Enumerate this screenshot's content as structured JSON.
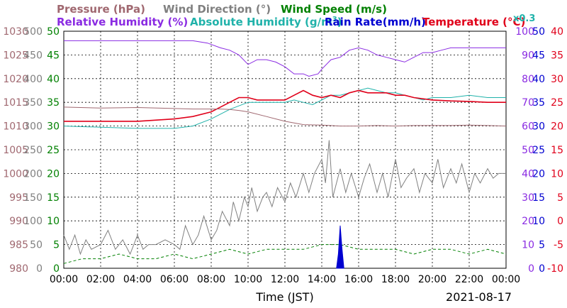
{
  "chart_data": {
    "type": "line",
    "legend": {
      "row1": [
        {
          "text": "Pressure (hPa)",
          "color": "#a06870"
        },
        {
          "text": "Wind Direction (°)",
          "color": "#808080"
        },
        {
          "text": "Wind Speed (m/s)",
          "color": "#008000"
        }
      ],
      "row2": [
        {
          "text": "Relative Humidity (%)",
          "color": "#8a2be2"
        },
        {
          "text": "Absolute Humidity (g/m",
          "sup": "3",
          "tail": ")",
          "color": "#20b2aa"
        },
        {
          "text": "Rain Rate(mm/h)",
          "color": "#0000d0"
        },
        {
          "text": "Temperature (°C)",
          "color": "#e0001a"
        }
      ],
      "scale_note": "x0.3"
    },
    "xlabel": "Time (JST)",
    "date": "2021-08-17",
    "x_ticks": [
      "00:00",
      "02:00",
      "04:00",
      "06:00",
      "08:00",
      "10:00",
      "12:00",
      "14:00",
      "16:00",
      "18:00",
      "20:00",
      "22:00",
      "00:00"
    ],
    "x_range_hours": [
      0,
      24
    ],
    "axes": {
      "pressure": {
        "ticks": [
          "1030",
          "1025",
          "1020",
          "1015",
          "1010",
          "1005",
          "1000",
          "995",
          "990",
          "985",
          "980"
        ],
        "range": [
          980,
          1030
        ],
        "color": "#a06870"
      },
      "wind_direction": {
        "ticks": [
          "500",
          "450",
          "400",
          "350",
          "300",
          "250",
          "200",
          "150",
          "100",
          "50",
          "0"
        ],
        "range": [
          0,
          500
        ],
        "color": "#808080"
      },
      "wind_speed": {
        "ticks": [
          "50",
          "45",
          "40",
          "35",
          "30",
          "25",
          "20",
          "15",
          "10",
          "5",
          "0"
        ],
        "range": [
          0,
          50
        ],
        "color": "#008000"
      },
      "humidity": {
        "ticks": [
          "100",
          "90",
          "80",
          "70",
          "60",
          "50",
          "40",
          "30",
          "20",
          "10",
          "0"
        ],
        "range": [
          0,
          100
        ],
        "color": "#8a2be2"
      },
      "rain_rate": {
        "ticks": [
          "50",
          "45",
          "40",
          "35",
          "30",
          "25",
          "20",
          "15",
          "10",
          "5",
          "0"
        ],
        "range": [
          0,
          50
        ],
        "color": "#0000d0"
      },
      "temperature": {
        "ticks": [
          "40",
          "35",
          "30",
          "25",
          "20",
          "15",
          "10",
          "5",
          "0",
          "-5",
          "-10"
        ],
        "range": [
          -10,
          40
        ],
        "color": "#e0001a"
      }
    },
    "series": [
      {
        "name": "Relative Humidity (%)",
        "axis": "humidity",
        "color": "#8a2be2",
        "x": [
          0,
          3,
          6,
          7,
          7.8,
          8.5,
          9,
          9.5,
          10,
          10.5,
          11,
          11.5,
          12,
          12.5,
          13,
          13.3,
          13.8,
          14,
          14.5,
          15,
          15.5,
          16,
          16.5,
          17,
          17.5,
          18,
          18.5,
          19,
          19.5,
          20,
          20.5,
          21,
          22,
          23,
          24
        ],
        "y": [
          96,
          96,
          96,
          96,
          95,
          93,
          92,
          90,
          86,
          88,
          88,
          87,
          85,
          82,
          82,
          81,
          82,
          84,
          88,
          89,
          92,
          93,
          92,
          90,
          89,
          88,
          87,
          89,
          91,
          91,
          92,
          93,
          93,
          93,
          93
        ]
      },
      {
        "name": "Absolute Humidity (g/m3)",
        "axis": "humidity",
        "color": "#20b2aa",
        "x": [
          0,
          2,
          4,
          6,
          7,
          8,
          9,
          10,
          11,
          12,
          12.5,
          13,
          13.5,
          14,
          14.5,
          15,
          15.5,
          16,
          16.5,
          17,
          17.5,
          18,
          18.5,
          19,
          19.5,
          20,
          21,
          22,
          23,
          24
        ],
        "y": [
          60,
          59.5,
          59,
          59,
          60,
          63,
          67,
          70,
          70,
          70,
          71,
          70,
          69,
          71,
          73,
          73,
          74,
          75,
          76,
          75,
          74,
          74,
          73,
          72,
          71,
          72,
          72,
          73,
          72,
          72
        ]
      },
      {
        "name": "Temperature (°C)",
        "axis": "temperature",
        "color": "#e0001a",
        "x": [
          0,
          2,
          4,
          6,
          7,
          8,
          8.5,
          9,
          9.5,
          10,
          10.5,
          11,
          12,
          12.5,
          13,
          13.5,
          14,
          14.5,
          15,
          15.5,
          16,
          16.5,
          17,
          17.5,
          18,
          18.5,
          19,
          20,
          21,
          22,
          23,
          24
        ],
        "y": [
          21,
          21,
          21,
          21.5,
          22,
          23,
          24,
          25,
          26,
          26,
          25.5,
          25.5,
          25.5,
          26.5,
          27.5,
          26.5,
          26,
          26.5,
          26,
          27,
          27.5,
          27,
          27,
          27,
          26.5,
          26.5,
          26,
          25.5,
          25.3,
          25.2,
          25,
          25
        ]
      },
      {
        "name": "Pressure (hPa)",
        "axis": "pressure",
        "color": "#a06870",
        "x": [
          0,
          2,
          4,
          6,
          7,
          8,
          8.5,
          9,
          9.5,
          10,
          11,
          12,
          13,
          14,
          15,
          16,
          17,
          18,
          19,
          20,
          21,
          22,
          23,
          24
        ],
        "y": [
          1014,
          1013.8,
          1013.9,
          1013.7,
          1013.6,
          1013.6,
          1013.6,
          1013.5,
          1013.3,
          1013,
          1012,
          1011,
          1010.3,
          1010.2,
          1010,
          1010,
          1010.1,
          1010,
          1010.1,
          1010.1,
          1010.1,
          1010.2,
          1010.1,
          1010
        ]
      },
      {
        "name": "Wind Direction (°)",
        "axis": "wind_direction",
        "color": "#808080",
        "x": [
          0,
          0.3,
          0.6,
          0.9,
          1.2,
          1.5,
          2,
          2.4,
          2.8,
          3.2,
          3.6,
          4,
          4.3,
          4.6,
          5,
          5.5,
          6,
          6.3,
          6.6,
          7,
          7.3,
          7.6,
          8,
          8.3,
          8.6,
          9,
          9.2,
          9.5,
          9.8,
          10,
          10.2,
          10.5,
          10.8,
          11,
          11.3,
          11.6,
          12,
          12.3,
          12.6,
          13,
          13.3,
          13.6,
          14,
          14.2,
          14.4,
          14.6,
          14.8,
          15,
          15.3,
          15.6,
          16,
          16.3,
          16.6,
          17,
          17.3,
          17.6,
          18,
          18.3,
          18.6,
          19,
          19.3,
          19.6,
          20,
          20.3,
          20.6,
          21,
          21.3,
          21.6,
          22,
          22.3,
          22.6,
          23,
          23.3,
          23.6,
          24
        ],
        "y": [
          70,
          40,
          70,
          30,
          60,
          40,
          50,
          80,
          40,
          60,
          30,
          70,
          40,
          50,
          50,
          60,
          50,
          40,
          90,
          50,
          70,
          110,
          60,
          80,
          120,
          90,
          140,
          100,
          150,
          130,
          170,
          120,
          150,
          160,
          130,
          170,
          140,
          180,
          150,
          200,
          160,
          200,
          230,
          180,
          270,
          150,
          180,
          210,
          160,
          200,
          150,
          190,
          220,
          160,
          200,
          150,
          230,
          170,
          190,
          210,
          160,
          200,
          180,
          230,
          170,
          210,
          180,
          220,
          160,
          200,
          180,
          210,
          190,
          200,
          200
        ]
      },
      {
        "name": "Wind Speed (m/s)",
        "axis": "wind_speed",
        "color": "#008000",
        "x": [
          0,
          1,
          2,
          3,
          4,
          5,
          6,
          7,
          8,
          9,
          10,
          11,
          12,
          13,
          14,
          15,
          16,
          17,
          18,
          19,
          20,
          21,
          22,
          23,
          24
        ],
        "y": [
          1,
          2,
          2,
          3,
          2,
          2,
          3,
          2,
          3,
          4,
          3,
          4,
          4,
          4,
          5,
          5,
          4,
          4,
          4,
          3,
          4,
          4,
          3,
          4,
          3
        ]
      },
      {
        "name": "Rain Rate(mm/h)",
        "axis": "rain_rate",
        "color": "#0000d0",
        "x": [
          14.8,
          14.9,
          15.0,
          15.1,
          15.2
        ],
        "y": [
          0,
          3,
          9,
          4,
          0
        ]
      }
    ]
  }
}
